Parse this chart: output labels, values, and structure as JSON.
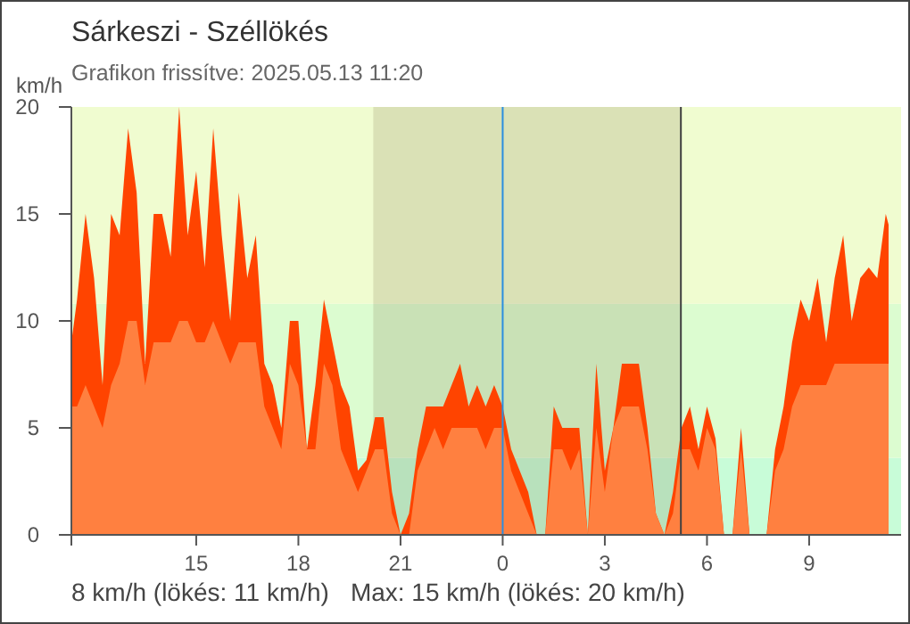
{
  "chart_data": {
    "type": "area",
    "title": "Sárkeszi - Széllökés",
    "subtitle": "Grafikon frissítve: 2025.05.13 11:20",
    "ylabel": "km/h",
    "annotations": [
      "8 km/h (lökés: 11 km/h)",
      "Max: 15 km/h (lökés: 20 km/h)"
    ],
    "x": [
      "2025-05-12T11:20",
      "2025-05-12T11:30",
      "2025-05-12T11:45",
      "2025-05-12T12:00",
      "2025-05-12T12:15",
      "2025-05-12T12:30",
      "2025-05-12T12:45",
      "2025-05-12T13:00",
      "2025-05-12T13:15",
      "2025-05-12T13:30",
      "2025-05-12T13:45",
      "2025-05-12T14:00",
      "2025-05-12T14:15",
      "2025-05-12T14:30",
      "2025-05-12T14:45",
      "2025-05-12T15:00",
      "2025-05-12T15:15",
      "2025-05-12T15:30",
      "2025-05-12T15:45",
      "2025-05-12T16:00",
      "2025-05-12T16:15",
      "2025-05-12T16:30",
      "2025-05-12T16:45",
      "2025-05-12T17:00",
      "2025-05-12T17:15",
      "2025-05-12T17:30",
      "2025-05-12T17:45",
      "2025-05-12T18:00",
      "2025-05-12T18:15",
      "2025-05-12T18:30",
      "2025-05-12T18:45",
      "2025-05-12T19:00",
      "2025-05-12T19:15",
      "2025-05-12T19:30",
      "2025-05-12T19:45",
      "2025-05-12T20:00",
      "2025-05-12T20:15",
      "2025-05-12T20:30",
      "2025-05-12T20:45",
      "2025-05-12T21:00",
      "2025-05-12T21:15",
      "2025-05-12T21:30",
      "2025-05-12T21:45",
      "2025-05-12T22:00",
      "2025-05-12T22:15",
      "2025-05-12T22:30",
      "2025-05-12T22:45",
      "2025-05-12T23:00",
      "2025-05-12T23:15",
      "2025-05-12T23:30",
      "2025-05-12T23:45",
      "2025-05-13T00:00",
      "2025-05-13T00:15",
      "2025-05-13T00:30",
      "2025-05-13T00:45",
      "2025-05-13T01:00",
      "2025-05-13T01:15",
      "2025-05-13T01:30",
      "2025-05-13T01:45",
      "2025-05-13T02:00",
      "2025-05-13T02:15",
      "2025-05-13T02:30",
      "2025-05-13T02:45",
      "2025-05-13T03:00",
      "2025-05-13T03:15",
      "2025-05-13T03:30",
      "2025-05-13T03:45",
      "2025-05-13T04:00",
      "2025-05-13T04:15",
      "2025-05-13T04:30",
      "2025-05-13T04:45",
      "2025-05-13T05:00",
      "2025-05-13T05:15",
      "2025-05-13T05:30",
      "2025-05-13T05:45",
      "2025-05-13T06:00",
      "2025-05-13T06:15",
      "2025-05-13T06:30",
      "2025-05-13T06:45",
      "2025-05-13T07:00",
      "2025-05-13T07:15",
      "2025-05-13T07:30",
      "2025-05-13T07:45",
      "2025-05-13T08:00",
      "2025-05-13T08:15",
      "2025-05-13T08:30",
      "2025-05-13T08:45",
      "2025-05-13T09:00",
      "2025-05-13T09:15",
      "2025-05-13T09:30",
      "2025-05-13T09:45",
      "2025-05-13T10:00",
      "2025-05-13T10:15",
      "2025-05-13T10:30",
      "2025-05-13T10:45",
      "2025-05-13T11:00",
      "2025-05-13T11:15",
      "2025-05-13T11:20"
    ],
    "series": [
      {
        "color": "#ff4400",
        "values": [
          9,
          11,
          15,
          12,
          7,
          15,
          14,
          19,
          16,
          8,
          15,
          15,
          13,
          20,
          14,
          17,
          12.5,
          19,
          14,
          10,
          16,
          12,
          14,
          8,
          7,
          5,
          10,
          10,
          4,
          7,
          11,
          9,
          7,
          6,
          3,
          3.5,
          5.5,
          5.5,
          2,
          0,
          1,
          4,
          6,
          6,
          6,
          7,
          8,
          6,
          7,
          6,
          7,
          6,
          4,
          3,
          2,
          0,
          0,
          6,
          5,
          5,
          5,
          0,
          8,
          3,
          5,
          8,
          8,
          8,
          5,
          1,
          0,
          2,
          5,
          6,
          4,
          6,
          4.5,
          0,
          0,
          5,
          0,
          0,
          0,
          4,
          6,
          9,
          11,
          10,
          12,
          9,
          12,
          14,
          10,
          12,
          12.5,
          12,
          15,
          14.5
        ]
      },
      {
        "color": "#ff8040",
        "values": [
          6,
          6,
          7,
          6,
          5,
          7,
          8,
          10,
          10,
          7,
          9,
          9,
          9,
          10,
          10,
          9,
          9,
          10,
          9,
          8,
          9,
          9,
          9,
          6,
          5,
          4,
          8,
          7,
          4,
          4,
          8,
          7,
          4,
          3,
          2,
          3,
          4,
          4,
          1,
          0,
          0,
          3,
          4,
          5,
          4,
          5,
          5,
          5,
          5,
          4,
          5,
          5,
          3,
          2,
          1,
          0,
          0,
          4,
          4,
          3,
          4,
          0,
          5,
          2,
          5,
          6,
          6,
          6,
          4,
          1,
          0,
          1,
          4,
          4,
          3,
          5,
          4,
          0,
          0,
          4,
          0,
          0,
          0,
          3,
          4,
          6,
          7,
          7,
          7,
          7,
          8,
          8,
          8,
          8,
          8,
          8,
          8,
          8
        ]
      }
    ],
    "xlim": [
      "2025-05-12T11:20",
      "2025-05-13T11:42"
    ],
    "xticks": [
      {
        "value": "2025-05-12T15:00",
        "label": "15"
      },
      {
        "value": "2025-05-12T18:00",
        "label": "18"
      },
      {
        "value": "2025-05-12T21:00",
        "label": "21"
      },
      {
        "value": "2025-05-13T00:00",
        "label": "0"
      },
      {
        "value": "2025-05-13T03:00",
        "label": "3"
      },
      {
        "value": "2025-05-13T06:00",
        "label": "6"
      },
      {
        "value": "2025-05-13T09:00",
        "label": "9"
      }
    ],
    "ylim": [
      0,
      20
    ],
    "yticks": [
      0,
      5,
      10,
      15,
      20
    ],
    "bands": [
      {
        "axis": "y",
        "from": 0,
        "to": 3.6,
        "color": "#c8fcd8"
      },
      {
        "axis": "y",
        "from": 3.6,
        "to": 10.8,
        "color": "#dcfcd0"
      },
      {
        "axis": "y",
        "from": 10.8,
        "to": 20,
        "color": "#f0fcd0"
      },
      {
        "axis": "x",
        "from": "2025-05-12T20:12",
        "to": "2025-05-13T05:14",
        "color": "#604c20"
      }
    ],
    "ref_lines": [
      {
        "axis": "x",
        "value": "2025-05-13T00:00",
        "color": "#2a8ee0"
      },
      {
        "axis": "x",
        "value": "2025-05-13T05:14",
        "color": "#404040"
      }
    ]
  }
}
